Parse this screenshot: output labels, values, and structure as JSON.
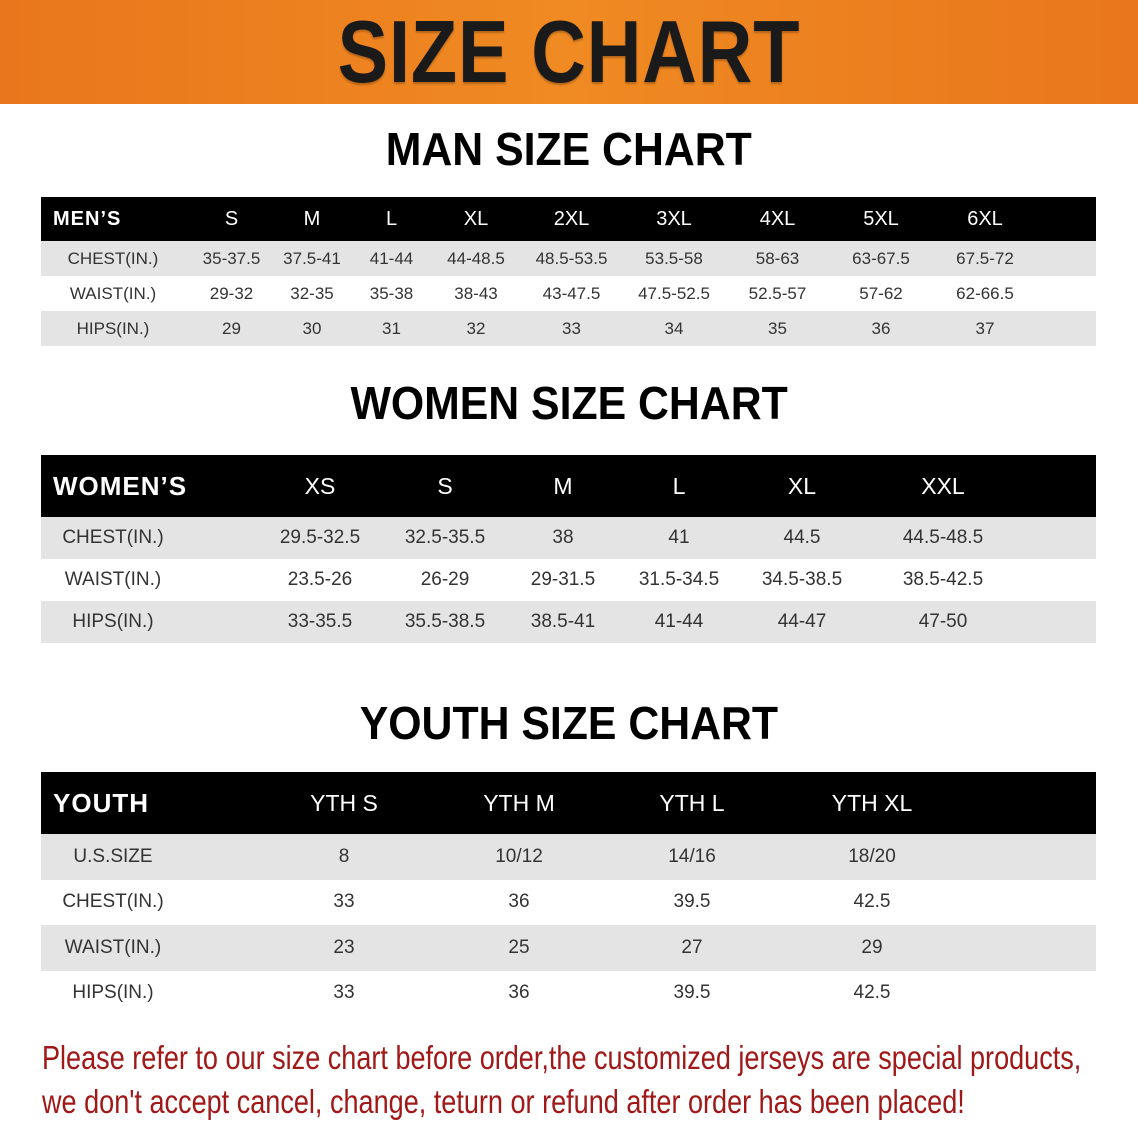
{
  "banner": {
    "title": "SIZE CHART",
    "color": "#ee8020"
  },
  "men": {
    "title": "MAN SIZE CHART",
    "header": [
      "MEN’S",
      "S",
      "M",
      "L",
      "XL",
      "2XL",
      "3XL",
      "4XL",
      "5XL",
      "6XL"
    ],
    "rows": [
      [
        "CHEST(IN.)",
        "35-37.5",
        "37.5-41",
        "41-44",
        "44-48.5",
        "48.5-53.5",
        "53.5-58",
        "58-63",
        "63-67.5",
        "67.5-72"
      ],
      [
        "WAIST(IN.)",
        "29-32",
        "32-35",
        "35-38",
        "38-43",
        "43-47.5",
        "47.5-52.5",
        "52.5-57",
        "57-62",
        "62-66.5"
      ],
      [
        "HIPS(IN.)",
        "29",
        "30",
        "31",
        "32",
        "33",
        "34",
        "35",
        "36",
        "37"
      ]
    ]
  },
  "women": {
    "title": "WOMEN SIZE CHART",
    "header": [
      "WOMEN’S",
      "XS",
      "S",
      "M",
      "L",
      "XL",
      "XXL"
    ],
    "rows": [
      [
        "CHEST(IN.)",
        "29.5-32.5",
        "32.5-35.5",
        "38",
        "41",
        "44.5",
        "44.5-48.5"
      ],
      [
        "WAIST(IN.)",
        "23.5-26",
        "26-29",
        "29-31.5",
        "31.5-34.5",
        "34.5-38.5",
        "38.5-42.5"
      ],
      [
        "HIPS(IN.)",
        "33-35.5",
        "35.5-38.5",
        "38.5-41",
        "41-44",
        "44-47",
        "47-50"
      ]
    ]
  },
  "youth": {
    "title": "YOUTH SIZE CHART",
    "header": [
      "YOUTH",
      "YTH S",
      "YTH M",
      "YTH L",
      "YTH XL"
    ],
    "rows": [
      [
        "U.S.SIZE",
        "8",
        "10/12",
        "14/16",
        "18/20"
      ],
      [
        "CHEST(IN.)",
        "33",
        "36",
        "39.5",
        "42.5"
      ],
      [
        "WAIST(IN.)",
        "23",
        "25",
        "27",
        "29"
      ],
      [
        "HIPS(IN.)",
        "33",
        "36",
        "39.5",
        "42.5"
      ]
    ]
  },
  "notice": {
    "line1": "Please refer to our size chart before order,the customized jerseys are special products,",
    "line2": "we don't accept cancel, change, teturn or refund after order has been placed!",
    "color": "#a01818"
  }
}
